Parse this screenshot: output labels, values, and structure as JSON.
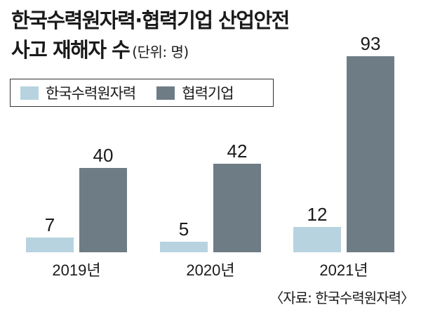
{
  "title_line1": "한국수력원자력·협력기업 산업안전",
  "title_line2": "사고 재해자 수",
  "unit": "(단위: 명)",
  "source": "〈자료: 한국수력원자력〉",
  "colors": {
    "khnp": "#b8d3e0",
    "partner": "#6e7c86"
  },
  "chart_data": {
    "type": "bar",
    "title": "한국수력원자력·협력기업 산업안전 사고 재해자 수",
    "unit": "(단위: 명)",
    "categories": [
      "2019년",
      "2020년",
      "2021년"
    ],
    "series": [
      {
        "name": "한국수력원자력",
        "values": [
          7,
          5,
          12
        ]
      },
      {
        "name": "협력기업",
        "values": [
          40,
          42,
          93
        ]
      }
    ],
    "ylim": [
      0,
      100
    ],
    "grid": false,
    "legend": "top-left"
  }
}
